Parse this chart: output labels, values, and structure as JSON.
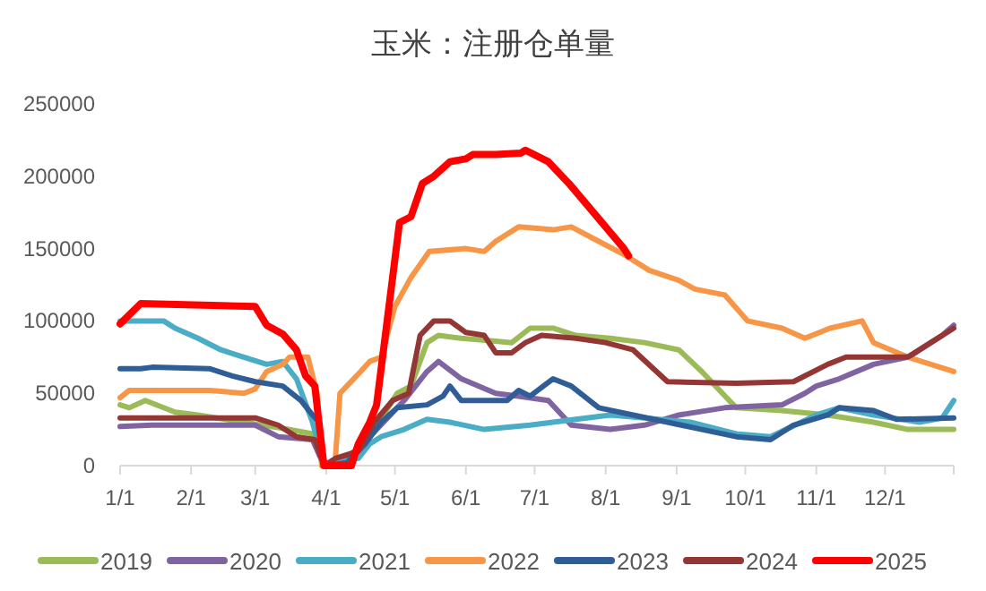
{
  "chart_data": {
    "type": "line",
    "title": "玉米：注册仓单量",
    "xlim": [
      "--01-01",
      "--12-31"
    ],
    "ylim": [
      0,
      250000
    ],
    "xticks": [
      {
        "value": "--01-01",
        "label": "1/1"
      },
      {
        "value": "--02-01",
        "label": "2/1"
      },
      {
        "value": "--03-01",
        "label": "3/1"
      },
      {
        "value": "--04-01",
        "label": "4/1"
      },
      {
        "value": "--05-01",
        "label": "5/1"
      },
      {
        "value": "--06-01",
        "label": "6/1"
      },
      {
        "value": "--07-01",
        "label": "7/1"
      },
      {
        "value": "--08-01",
        "label": "8/1"
      },
      {
        "value": "--09-01",
        "label": "9/1"
      },
      {
        "value": "--10-01",
        "label": "10/1"
      },
      {
        "value": "--11-01",
        "label": "11/1"
      },
      {
        "value": "--12-01",
        "label": "12/1"
      }
    ],
    "yticks": [
      0,
      50000,
      100000,
      150000,
      200000,
      250000
    ],
    "grid": false,
    "legend": "bottom",
    "marker": "none",
    "line_style": "solid",
    "series": [
      {
        "name": "2019",
        "color": "#9bbb59",
        "x": [
          "--01-01",
          "--01-05",
          "--01-12",
          "--01-25",
          "--02-04",
          "--02-24",
          "--03-16",
          "--03-26",
          "--03-31",
          "--04-10",
          "--04-20",
          "--05-02",
          "--05-08",
          "--05-15",
          "--05-20",
          "--05-30",
          "--06-14",
          "--06-21",
          "--06-29",
          "--07-09",
          "--07-19",
          "--08-03",
          "--08-18",
          "--09-02",
          "--09-12",
          "--09-27",
          "--10-17",
          "--11-06",
          "--11-26",
          "--12-11",
          "--12-31"
        ],
        "values": [
          42000,
          40000,
          45000,
          37000,
          35000,
          30000,
          25000,
          22000,
          0,
          3000,
          20000,
          50000,
          55000,
          85000,
          90000,
          88000,
          86000,
          85000,
          95000,
          95000,
          90000,
          88000,
          85000,
          80000,
          65000,
          40000,
          38000,
          35000,
          30000,
          25000,
          25000
        ]
      },
      {
        "name": "2020",
        "color": "#8064a2",
        "x": [
          "--01-01",
          "--01-15",
          "--03-01",
          "--03-11",
          "--03-26",
          "--03-31",
          "--04-10",
          "--04-20",
          "--05-05",
          "--05-15",
          "--05-20",
          "--05-30",
          "--06-14",
          "--06-24",
          "--07-07",
          "--07-17",
          "--08-03",
          "--08-18",
          "--09-02",
          "--09-22",
          "--10-17",
          "--10-27",
          "--11-01",
          "--11-11",
          "--11-26",
          "--12-11",
          "--12-26",
          "--12-31"
        ],
        "values": [
          27000,
          28000,
          28000,
          20000,
          18000,
          0,
          5000,
          20000,
          45000,
          65000,
          72000,
          60000,
          50000,
          48000,
          45000,
          28000,
          25000,
          28000,
          35000,
          40000,
          42000,
          50000,
          55000,
          60000,
          70000,
          75000,
          90000,
          97000
        ]
      },
      {
        "name": "2021",
        "color": "#4bacc6",
        "x": [
          "--01-01",
          "--01-20",
          "--01-25",
          "--02-04",
          "--02-14",
          "--02-24",
          "--03-06",
          "--03-13",
          "--03-19",
          "--03-26",
          "--03-31",
          "--04-15",
          "--04-20",
          "--04-25",
          "--05-05",
          "--05-15",
          "--05-25",
          "--06-09",
          "--06-29",
          "--07-19",
          "--08-03",
          "--08-18",
          "--09-07",
          "--09-27",
          "--10-12",
          "--11-01",
          "--11-11",
          "--11-26",
          "--12-16",
          "--12-26",
          "--12-31"
        ],
        "values": [
          100000,
          100000,
          95000,
          88000,
          80000,
          75000,
          70000,
          72000,
          60000,
          30000,
          0,
          5000,
          15000,
          20000,
          25000,
          32000,
          30000,
          25000,
          28000,
          32000,
          35000,
          33000,
          30000,
          22000,
          20000,
          35000,
          40000,
          35000,
          30000,
          33000,
          45000
        ]
      },
      {
        "name": "2022",
        "color": "#f79646",
        "x": [
          "--01-01",
          "--01-05",
          "--02-09",
          "--02-24",
          "--03-01",
          "--03-06",
          "--03-13",
          "--03-16",
          "--03-24",
          "--03-28",
          "--03-30",
          "--04-04",
          "--04-05",
          "--04-07",
          "--04-10",
          "--04-16",
          "--04-20",
          "--04-25",
          "--05-01",
          "--05-08",
          "--05-16",
          "--06-01",
          "--06-09",
          "--06-14",
          "--06-24",
          "--07-09",
          "--07-17",
          "--07-29",
          "--08-10",
          "--08-20",
          "--09-02",
          "--09-09",
          "--09-22",
          "--10-02",
          "--10-17",
          "--10-27",
          "--11-07",
          "--11-21",
          "--11-26",
          "--12-11",
          "--12-31"
        ],
        "values": [
          47000,
          52000,
          52000,
          50000,
          53000,
          65000,
          70000,
          75000,
          75000,
          50000,
          0,
          2000,
          5000,
          50000,
          55000,
          65000,
          72000,
          75000,
          110000,
          130000,
          148000,
          150000,
          148000,
          155000,
          165000,
          163000,
          165000,
          155000,
          145000,
          135000,
          128000,
          122000,
          118000,
          100000,
          95000,
          88000,
          95000,
          100000,
          85000,
          75000,
          65000
        ]
      },
      {
        "name": "2023",
        "color": "#2f5e97",
        "x": [
          "--01-01",
          "--01-10",
          "--01-15",
          "--02-09",
          "--02-19",
          "--03-01",
          "--03-13",
          "--03-21",
          "--03-26",
          "--03-29",
          "--03-31",
          "--04-10",
          "--04-18",
          "--04-25",
          "--05-02",
          "--05-15",
          "--05-22",
          "--05-25",
          "--05-30",
          "--06-19",
          "--06-24",
          "--06-29",
          "--07-09",
          "--07-17",
          "--07-29",
          "--08-13",
          "--08-28",
          "--09-12",
          "--09-27",
          "--10-12",
          "--10-22",
          "--11-06",
          "--11-11",
          "--11-26",
          "--12-06",
          "--12-31"
        ],
        "values": [
          67000,
          67000,
          68000,
          67000,
          62000,
          58000,
          55000,
          45000,
          35000,
          30000,
          0,
          2000,
          15000,
          30000,
          40000,
          42000,
          48000,
          55000,
          45000,
          45000,
          52000,
          48000,
          60000,
          55000,
          40000,
          35000,
          30000,
          25000,
          20000,
          18000,
          28000,
          35000,
          40000,
          38000,
          32000,
          33000
        ]
      },
      {
        "name": "2024",
        "color": "#943634",
        "x": [
          "--01-01",
          "--03-01",
          "--03-11",
          "--03-19",
          "--03-27",
          "--03-31",
          "--04-05",
          "--04-15",
          "--04-22",
          "--04-30",
          "--05-07",
          "--05-12",
          "--05-18",
          "--05-25",
          "--06-01",
          "--06-09",
          "--06-14",
          "--06-21",
          "--06-27",
          "--07-04",
          "--07-19",
          "--08-01",
          "--08-13",
          "--08-28",
          "--09-27",
          "--10-22",
          "--11-06",
          "--11-14",
          "--12-11",
          "--12-21",
          "--12-31"
        ],
        "values": [
          33000,
          33000,
          28000,
          20000,
          18000,
          0,
          5000,
          10000,
          30000,
          45000,
          50000,
          90000,
          100000,
          100000,
          92000,
          90000,
          78000,
          78000,
          85000,
          90000,
          88000,
          85000,
          80000,
          58000,
          57000,
          58000,
          70000,
          75000,
          75000,
          85000,
          95000
        ]
      },
      {
        "name": "2025",
        "color": "#ff0000",
        "x": [
          "--01-01",
          "--01-10",
          "--03-01",
          "--03-06",
          "--03-13",
          "--03-19",
          "--03-23",
          "--03-27",
          "--03-31",
          "--04-12",
          "--04-15",
          "--04-20",
          "--04-23",
          "--05-03",
          "--05-08",
          "--05-13",
          "--05-18",
          "--05-25",
          "--06-01",
          "--06-04",
          "--06-14",
          "--06-25",
          "--06-27",
          "--07-07",
          "--07-16",
          "--07-24",
          "--08-01",
          "--08-09",
          "--08-11"
        ],
        "values": [
          98000,
          112000,
          110000,
          97000,
          91000,
          80000,
          62000,
          55000,
          0,
          0,
          15000,
          30000,
          42000,
          168000,
          172000,
          195000,
          200000,
          210000,
          212000,
          215000,
          215000,
          216000,
          218000,
          210000,
          195000,
          180000,
          165000,
          150000,
          145000
        ]
      }
    ]
  }
}
